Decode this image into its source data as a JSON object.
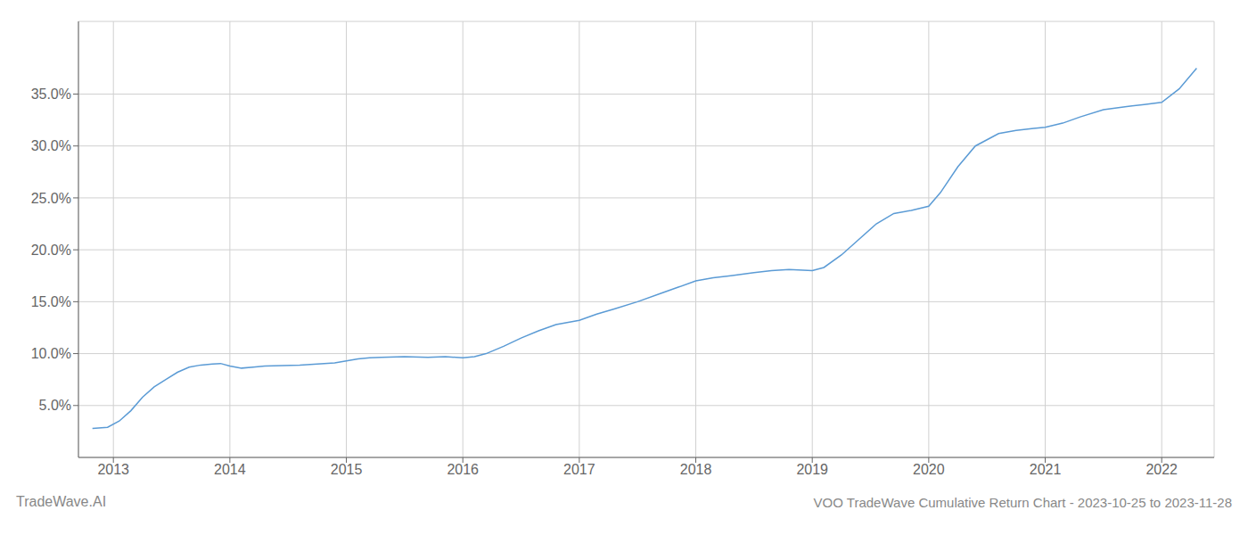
{
  "chart_data": {
    "type": "line",
    "title": "VOO TradeWave Cumulative Return Chart - 2023-10-25 to 2023-11-28",
    "annotations": [
      "TradeWave.AI"
    ],
    "color": "#5b9bd5",
    "grid": true,
    "x": [
      2012.82,
      2012.95,
      2013.05,
      2013.15,
      2013.25,
      2013.35,
      2013.45,
      2013.55,
      2013.65,
      2013.75,
      2013.85,
      2013.92,
      2014.0,
      2014.05,
      2014.1,
      2014.2,
      2014.3,
      2014.45,
      2014.6,
      2014.75,
      2014.9,
      2015.0,
      2015.1,
      2015.2,
      2015.3,
      2015.5,
      2015.7,
      2015.85,
      2016.0,
      2016.1,
      2016.2,
      2016.35,
      2016.5,
      2016.65,
      2016.8,
      2017.0,
      2017.15,
      2017.3,
      2017.5,
      2017.7,
      2017.85,
      2018.0,
      2018.15,
      2018.3,
      2018.5,
      2018.65,
      2018.8,
      2019.0,
      2019.1,
      2019.25,
      2019.4,
      2019.55,
      2019.7,
      2019.85,
      2020.0,
      2020.1,
      2020.25,
      2020.4,
      2020.6,
      2020.75,
      2020.9,
      2021.0,
      2021.15,
      2021.3,
      2021.5,
      2021.7,
      2021.85,
      2022.0,
      2022.15,
      2022.3
    ],
    "values": [
      2.8,
      2.9,
      3.5,
      4.5,
      5.8,
      6.8,
      7.5,
      8.2,
      8.7,
      8.9,
      9.0,
      9.05,
      8.8,
      8.7,
      8.6,
      8.7,
      8.8,
      8.85,
      8.9,
      9.0,
      9.1,
      9.3,
      9.5,
      9.6,
      9.65,
      9.7,
      9.65,
      9.7,
      9.6,
      9.7,
      10.0,
      10.7,
      11.5,
      12.2,
      12.8,
      13.2,
      13.8,
      14.3,
      15.0,
      15.8,
      16.4,
      17.0,
      17.3,
      17.5,
      17.8,
      18.0,
      18.1,
      18.0,
      18.3,
      19.5,
      21.0,
      22.5,
      23.5,
      23.8,
      24.2,
      25.5,
      28.0,
      30.0,
      31.2,
      31.5,
      31.7,
      31.8,
      32.2,
      32.8,
      33.5,
      33.8,
      34.0,
      34.2,
      35.5,
      37.5
    ],
    "xlim": [
      2012.7,
      2022.45
    ],
    "xticks": [
      2013,
      2014,
      2015,
      2016,
      2017,
      2018,
      2019,
      2020,
      2021,
      2022
    ],
    "ylim": [
      0,
      42
    ],
    "yticks": [
      {
        "value": 5.0,
        "label": "5.0%"
      },
      {
        "value": 10.0,
        "label": "10.0%"
      },
      {
        "value": 15.0,
        "label": "15.0%"
      },
      {
        "value": 20.0,
        "label": "20.0%"
      },
      {
        "value": 25.0,
        "label": "25.0%"
      },
      {
        "value": 30.0,
        "label": "30.0%"
      },
      {
        "value": 35.0,
        "label": "35.0%"
      }
    ]
  }
}
